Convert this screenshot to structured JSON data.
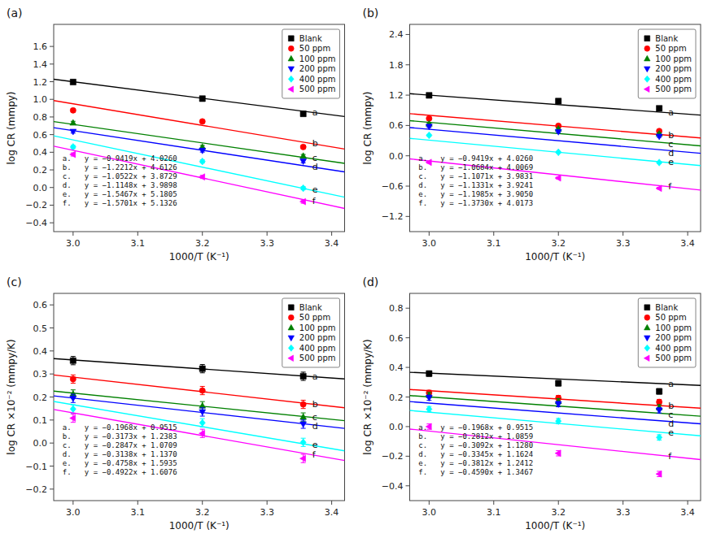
{
  "chart_data": [
    {
      "type": "scatter",
      "title": "(a)",
      "x_label": "1000/T (K⁻¹)",
      "y_label": "log CR (mmpy)",
      "x": [
        3.0,
        3.2,
        3.356
      ],
      "xlim": [
        2.97,
        3.42
      ],
      "xticks": [
        {
          "value": 3.0,
          "label": "3.0"
        },
        3.1,
        3.2,
        3.3,
        3.4
      ],
      "ylim": [
        -0.5,
        1.85
      ],
      "yticks": [
        {
          "value": -0.4,
          "label": "−0.4"
        },
        {
          "value": -0.2,
          "label": "−0.2"
        },
        {
          "value": 0.0,
          "label": "0.0"
        },
        0.2,
        0.4,
        0.6,
        0.8,
        {
          "value": 1.0,
          "label": "1.0"
        },
        1.2,
        1.4,
        1.6
      ],
      "grid": false,
      "legend": "upper right",
      "series": [
        {
          "type": "scatter",
          "name": "Blank",
          "color": "black",
          "marker": "square",
          "values": [
            1.196,
            1.008,
            0.836
          ],
          "errors": [
            0.018,
            0.018,
            0.018
          ]
        },
        {
          "type": "line",
          "label": "a",
          "color": "black",
          "x": [
            2.97,
            3.42
          ],
          "values": [
            1.228557,
            0.804702
          ]
        },
        {
          "type": "scatter",
          "name": "50 ppm",
          "color": "red",
          "marker": "circle",
          "values": [
            0.875,
            0.749,
            0.46
          ],
          "errors": [
            0.018,
            0.018,
            0.018
          ]
        },
        {
          "type": "line",
          "label": "b",
          "color": "red",
          "x": [
            2.97,
            3.42
          ],
          "values": [
            0.985636,
            0.436096
          ]
        },
        {
          "type": "scatter",
          "name": "100 ppm",
          "color": "green",
          "marker": "triangle-up",
          "values": [
            0.733,
            0.46,
            0.357
          ],
          "errors": [
            0.018,
            0.018,
            0.018
          ]
        },
        {
          "type": "line",
          "label": "c",
          "color": "green",
          "x": [
            2.97,
            3.42
          ],
          "values": [
            0.747866,
            0.274376
          ]
        },
        {
          "type": "scatter",
          "name": "200 ppm",
          "color": "#0000FF",
          "marker": "triangle-down",
          "values": [
            0.635,
            0.42,
            0.298
          ],
          "errors": [
            0.018,
            0.018,
            0.018
          ]
        },
        {
          "type": "line",
          "label": "d",
          "color": "#0000FF",
          "x": [
            2.97,
            3.42
          ],
          "values": [
            0.678844,
            0.177184
          ]
        },
        {
          "type": "scatter",
          "name": "400 ppm",
          "color": "cyan",
          "marker": "diamond",
          "values": [
            0.46,
            0.296,
            -0.008
          ],
          "errors": [
            0.018,
            0.018,
            0.018
          ]
        },
        {
          "type": "line",
          "label": "e",
          "color": "cyan",
          "x": [
            2.97,
            3.42
          ],
          "values": [
            0.586801,
            -0.109214
          ]
        },
        {
          "type": "scatter",
          "name": "500 ppm",
          "color": "magenta",
          "marker": "triangle-left",
          "values": [
            0.375,
            0.12,
            -0.16
          ],
          "errors": [
            0.018,
            0.018,
            0.018
          ]
        },
        {
          "type": "line",
          "label": "f",
          "color": "magenta",
          "x": [
            2.97,
            3.42
          ],
          "values": [
            0.469403,
            -0.237142
          ]
        }
      ],
      "annotations": [
        "a.   y = −0.9419x + 4.0260",
        "b.   y = −1.2212x + 4.6126",
        "c.   y = −1.0522x + 3.8729",
        "d.   y = −1.1148x + 3.9898",
        "e.   y = −1.5467x + 5.1805",
        "f.   y = −1.5701x + 5.1326"
      ]
    },
    {
      "type": "scatter",
      "title": "(b)",
      "x_label": "1000/T (K⁻¹)",
      "y_label": "log CR (mmpy)",
      "x": [
        3.0,
        3.2,
        3.356
      ],
      "xlim": [
        2.97,
        3.42
      ],
      "xticks": [
        {
          "value": 3.0,
          "label": "3.0"
        },
        3.1,
        3.2,
        3.3,
        3.4
      ],
      "ylim": [
        -1.5,
        2.6
      ],
      "yticks": [
        {
          "value": -1.2,
          "label": "−1.2"
        },
        {
          "value": -0.6,
          "label": "−0.6"
        },
        {
          "value": 0.0,
          "label": "0.0"
        },
        0.6,
        1.2,
        1.8,
        2.4
      ],
      "grid": false,
      "legend": "upper right",
      "series": [
        {
          "type": "scatter",
          "name": "Blank",
          "color": "black",
          "marker": "square",
          "values": [
            1.196,
            1.082,
            0.939
          ],
          "errors": [
            0.018,
            0.018,
            0.018
          ]
        },
        {
          "type": "line",
          "label": "a",
          "color": "black",
          "x": [
            2.97,
            3.42
          ],
          "values": [
            1.228557,
            0.804702
          ]
        },
        {
          "type": "scatter",
          "name": "50 ppm",
          "color": "red",
          "marker": "circle",
          "values": [
            0.738,
            0.593,
            0.49
          ],
          "errors": [
            0.018,
            0.018,
            0.018
          ]
        },
        {
          "type": "line",
          "label": "b",
          "color": "red",
          "x": [
            2.97,
            3.42
          ],
          "values": [
            0.833752,
            0.352972
          ]
        },
        {
          "type": "scatter",
          "name": "100 ppm",
          "color": "green",
          "marker": "triangle-up",
          "values": [
            0.632,
            0.533,
            0.435
          ],
          "errors": [
            0.018,
            0.018,
            0.018
          ]
        },
        {
          "type": "line",
          "label": "c",
          "color": "green",
          "x": [
            2.97,
            3.42
          ],
          "values": [
            0.695013,
            0.196818
          ]
        },
        {
          "type": "scatter",
          "name": "200 ppm",
          "color": "#0000FF",
          "marker": "triangle-down",
          "values": [
            0.579,
            0.476,
            0.383
          ],
          "errors": [
            0.018,
            0.018,
            0.018
          ]
        },
        {
          "type": "line",
          "label": "d",
          "color": "#0000FF",
          "x": [
            2.97,
            3.42
          ],
          "values": [
            0.558793,
            0.048898
          ]
        },
        {
          "type": "scatter",
          "name": "400 ppm",
          "color": "cyan",
          "marker": "diamond",
          "values": [
            0.405,
            0.07,
            -0.133
          ],
          "errors": [
            0.018,
            0.018,
            0.018
          ]
        },
        {
          "type": "line",
          "label": "e",
          "color": "cyan",
          "x": [
            2.97,
            3.42
          ],
          "values": [
            0.345455,
            -0.19387
          ]
        },
        {
          "type": "scatter",
          "name": "500 ppm",
          "color": "magenta",
          "marker": "triangle-left",
          "values": [
            -0.13,
            -0.44,
            -0.643
          ],
          "errors": [
            0.018,
            0.018,
            0.018
          ]
        },
        {
          "type": "line",
          "label": "f",
          "color": "magenta",
          "x": [
            2.97,
            3.42
          ],
          "values": [
            -0.06051,
            -0.67836
          ]
        }
      ],
      "annotations": [
        "a.   y = −0.9419x + 4.0260",
        "b.   y = −1.0684x + 4.0069",
        "c.   y = −1.1071x + 3.9831",
        "d.   y = −1.1331x + 3.9241",
        "e.   y = −1.1985x + 3.9050",
        "f.   y = −1.3730x + 4.0173"
      ]
    },
    {
      "type": "scatter",
      "title": "(c)",
      "x_label": "1000/T (K⁻¹)",
      "y_label": "log CR ×10⁻² (mmpy/K)",
      "x": [
        3.0,
        3.2,
        3.356
      ],
      "xlim": [
        2.97,
        3.42
      ],
      "xticks": [
        {
          "value": 3.0,
          "label": "3.0"
        },
        3.1,
        3.2,
        3.3,
        3.4
      ],
      "ylim": [
        -0.25,
        0.65
      ],
      "yticks": [
        {
          "value": -0.2,
          "label": "−0.2"
        },
        {
          "value": -0.1,
          "label": "−0.1"
        },
        {
          "value": 0.0,
          "label": "0.0"
        },
        0.1,
        0.2,
        0.3,
        0.4,
        0.5,
        0.6
      ],
      "grid": false,
      "legend": "upper right",
      "series": [
        {
          "type": "scatter",
          "name": "Blank",
          "color": "black",
          "marker": "square",
          "values": [
            0.358,
            0.323,
            0.29
          ],
          "errors": [
            0.018,
            0.018,
            0.018
          ]
        },
        {
          "type": "line",
          "label": "a",
          "color": "black",
          "x": [
            2.97,
            3.42
          ],
          "values": [
            0.367004,
            0.278444
          ]
        },
        {
          "type": "scatter",
          "name": "50 ppm",
          "color": "red",
          "marker": "circle",
          "values": [
            0.278,
            0.228,
            0.168
          ],
          "errors": [
            0.018,
            0.018,
            0.018
          ]
        },
        {
          "type": "line",
          "label": "b",
          "color": "red",
          "x": [
            2.97,
            3.42
          ],
          "values": [
            0.295919,
            0.153134
          ]
        },
        {
          "type": "scatter",
          "name": "100 ppm",
          "color": "green",
          "marker": "triangle-up",
          "values": [
            0.213,
            0.162,
            0.113
          ],
          "errors": [
            0.018,
            0.018,
            0.018
          ]
        },
        {
          "type": "line",
          "label": "c",
          "color": "green",
          "x": [
            2.97,
            3.42
          ],
          "values": [
            0.225341,
            0.097226
          ]
        },
        {
          "type": "scatter",
          "name": "200 ppm",
          "color": "#0000FF",
          "marker": "triangle-down",
          "values": [
            0.194,
            0.135,
            0.082
          ],
          "errors": [
            0.018,
            0.018,
            0.018
          ]
        },
        {
          "type": "line",
          "label": "d",
          "color": "#0000FF",
          "x": [
            2.97,
            3.42
          ],
          "values": [
            0.205014,
            0.063804
          ]
        },
        {
          "type": "scatter",
          "name": "400 ppm",
          "color": "cyan",
          "marker": "diamond",
          "values": [
            0.148,
            0.088,
            0.003
          ],
          "errors": [
            0.018,
            0.018,
            0.018
          ]
        },
        {
          "type": "line",
          "label": "e",
          "color": "cyan",
          "x": [
            2.97,
            3.42
          ],
          "values": [
            0.180374,
            -0.033736
          ]
        },
        {
          "type": "scatter",
          "name": "500 ppm",
          "color": "magenta",
          "marker": "triangle-left",
          "values": [
            0.108,
            0.042,
            -0.067
          ],
          "errors": [
            0.018,
            0.018,
            0.018
          ]
        },
        {
          "type": "line",
          "label": "f",
          "color": "magenta",
          "x": [
            2.97,
            3.42
          ],
          "values": [
            0.145766,
            -0.075724
          ]
        }
      ],
      "annotations": [
        "a.   y = −0.1968x + 0.9515",
        "b.   y = −0.3173x + 1.2383",
        "c.   y = −0.2847x + 1.0709",
        "d.   y = −0.3138x + 1.1370",
        "e.   y = −0.4758x + 1.5935",
        "f.   y = −0.4922x + 1.6076"
      ]
    },
    {
      "type": "scatter",
      "title": "(d)",
      "x_label": "1000/T (K⁻¹)",
      "y_label": "log CR ×10⁻² (mmpy/K)",
      "x": [
        3.0,
        3.2,
        3.356
      ],
      "xlim": [
        2.97,
        3.42
      ],
      "xticks": [
        {
          "value": 3.0,
          "label": "3.0"
        },
        3.1,
        3.2,
        3.3,
        3.4
      ],
      "ylim": [
        -0.5,
        0.9
      ],
      "yticks": [
        {
          "value": -0.4,
          "label": "−0.4"
        },
        {
          "value": -0.2,
          "label": "−0.2"
        },
        {
          "value": 0.0,
          "label": "0.0"
        },
        0.2,
        0.4,
        0.6,
        0.8
      ],
      "grid": false,
      "legend": "upper right",
      "series": [
        {
          "type": "scatter",
          "name": "Blank",
          "color": "black",
          "marker": "square",
          "values": [
            0.358,
            0.293,
            0.238
          ],
          "errors": [
            0.018,
            0.018,
            0.018
          ]
        },
        {
          "type": "line",
          "label": "a",
          "color": "black",
          "x": [
            2.97,
            3.42
          ],
          "values": [
            0.367004,
            0.278444
          ]
        },
        {
          "type": "scatter",
          "name": "50 ppm",
          "color": "red",
          "marker": "circle",
          "values": [
            0.228,
            0.193,
            0.166
          ],
          "errors": [
            0.018,
            0.018,
            0.018
          ]
        },
        {
          "type": "line",
          "label": "b",
          "color": "red",
          "x": [
            2.97,
            3.42
          ],
          "values": [
            0.250736,
            0.124196
          ]
        },
        {
          "type": "scatter",
          "name": "100 ppm",
          "color": "green",
          "marker": "triangle-up",
          "values": [
            0.213,
            0.171,
            0.13
          ],
          "errors": [
            0.018,
            0.018,
            0.018
          ]
        },
        {
          "type": "line",
          "label": "c",
          "color": "green",
          "x": [
            2.97,
            3.42
          ],
          "values": [
            0.209676,
            0.070536
          ]
        },
        {
          "type": "scatter",
          "name": "200 ppm",
          "color": "#0000FF",
          "marker": "triangle-down",
          "values": [
            0.195,
            0.152,
            0.11
          ],
          "errors": [
            0.018,
            0.018,
            0.018
          ]
        },
        {
          "type": "line",
          "label": "d",
          "color": "#0000FF",
          "x": [
            2.97,
            3.42
          ],
          "values": [
            0.168935,
            0.01841
          ]
        },
        {
          "type": "scatter",
          "name": "400 ppm",
          "color": "cyan",
          "marker": "diamond",
          "values": [
            0.118,
            0.037,
            -0.073
          ],
          "errors": [
            0.018,
            0.018,
            0.018
          ]
        },
        {
          "type": "line",
          "label": "e",
          "color": "cyan",
          "x": [
            2.97,
            3.42
          ],
          "values": [
            0.109036,
            -0.062504
          ]
        },
        {
          "type": "scatter",
          "name": "500 ppm",
          "color": "magenta",
          "marker": "triangle-left",
          "values": [
            0.0,
            -0.18,
            -0.32
          ],
          "errors": [
            0.018,
            0.018,
            0.018
          ]
        },
        {
          "type": "line",
          "label": "f",
          "color": "magenta",
          "x": [
            2.97,
            3.42
          ],
          "values": [
            -0.01653,
            -0.22308
          ]
        }
      ],
      "annotations": [
        "a.   y = −0.1968x + 0.9515",
        "b.   y = −0.2812x + 1.0859",
        "c.   y = −0.3092x + 1.1280",
        "d.   y = −0.3345x + 1.1624",
        "e.   y = −0.3812x + 1.2412",
        "f.   y = −0.4590x + 1.3467"
      ]
    }
  ]
}
